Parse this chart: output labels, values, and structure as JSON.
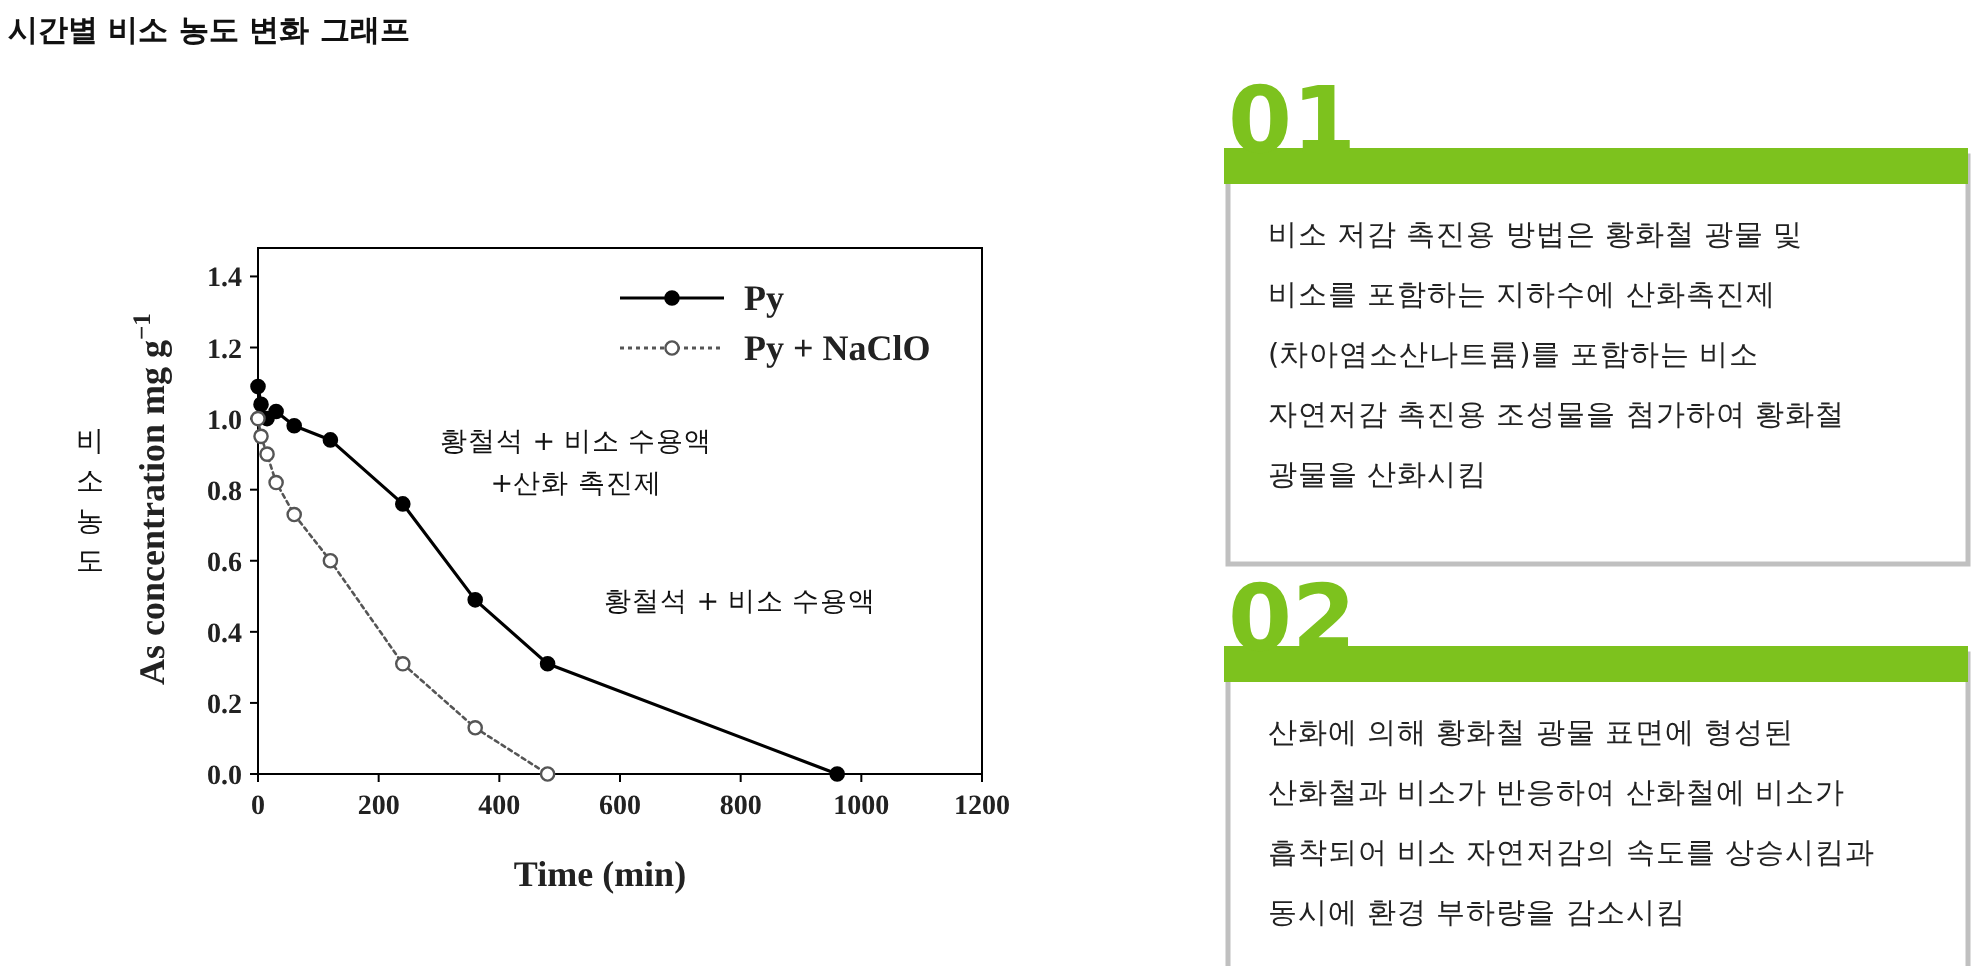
{
  "chart_data": [
    {
      "type": "line",
      "title": "시간별 비소 농도 변화 그래프",
      "xlabel": "Time (min)",
      "ylabel": "As concentration mg g$^{−1}$",
      "annotations": [
        "비소 농도",
        "황철석 + 비소 수용액\n+산화 촉진제",
        "황철석 + 비소 수용액"
      ],
      "series": [
        {
          "name": "Py",
          "color": "#000000",
          "line_style": "solid",
          "x": [
            0,
            5,
            15,
            30,
            60,
            120,
            240,
            360,
            480,
            960
          ],
          "values": [
            1.09,
            1.04,
            1.0,
            1.02,
            0.98,
            0.94,
            0.76,
            0.49,
            0.31,
            0.0
          ]
        },
        {
          "name": "Py + NaClO",
          "color": "#555555",
          "line_style": "dotted",
          "x": [
            0,
            5,
            15,
            30,
            60,
            120,
            240,
            360,
            480
          ],
          "values": [
            1.0,
            0.95,
            0.9,
            0.82,
            0.73,
            0.6,
            0.31,
            0.13,
            0.0
          ]
        }
      ],
      "marker": "circle",
      "legend": "top right",
      "grid": false,
      "xlim": [
        0,
        1200
      ],
      "xticks": [
        0,
        200,
        400,
        600,
        800,
        1000,
        1200
      ],
      "ylim": [
        0,
        1.48
      ],
      "yticks": [
        {
          "value": 0,
          "label": "0.0"
        },
        {
          "value": 0.2,
          "label": "0.2"
        },
        {
          "value": 0.4,
          "label": "0.4"
        },
        {
          "value": 0.6,
          "label": "0.6"
        },
        {
          "value": 0.8,
          "label": "0.8"
        },
        {
          "value": 1.0,
          "label": "1.0"
        },
        {
          "value": 1.2,
          "label": "1.2"
        },
        {
          "value": 1.4,
          "label": "1.4"
        }
      ]
    },
    {
      "type": "other",
      "title": "01",
      "annotations": [
        "비소 저감 촉진용 방법은 황화철 광물 및",
        "비소를 포함하는 지하수에 산화촉진제",
        "(차아염소산나트륨)를 포함하는 비소",
        "자연저감 촉진용 조성물을 첨가하여 황화철",
        "광물을 산화시킴"
      ]
    },
    {
      "type": "other",
      "title": "02",
      "annotations": [
        "산화에 의해 황화철 광물 표면에 형성된",
        "산화철과 비소가 반응하여 산화철에 비소가",
        "흡착되어 비소 자연저감의 속도를 상승시킴과",
        "동시에 환경 부하량을 감소시킴"
      ]
    }
  ]
}
